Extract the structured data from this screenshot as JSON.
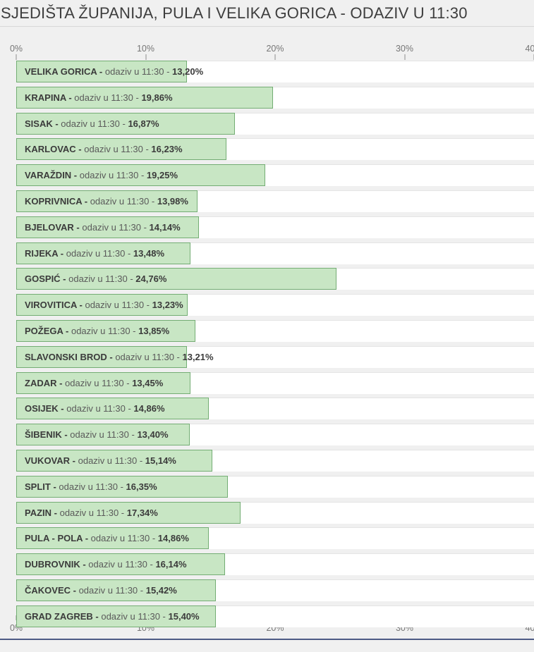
{
  "header": {
    "title": "SJEDIŠTA ŽUPANIJA, PULA I VELIKA GORICA - ODAZIV U 11:30"
  },
  "colors": {
    "bar_fill": "#c8e6c4",
    "bar_border": "#74ad74",
    "footer_line": "#4d5b85",
    "page_background": "#f0f0f0"
  },
  "chart_data": {
    "type": "bar",
    "orientation": "horizontal",
    "title": "SJEDIŠTA ŽUPANIJA, PULA I VELIKA GORICA - ODAZIV U 11:30",
    "xlim": [
      0,
      40
    ],
    "grid": false,
    "x_ticks": [
      {
        "pos": 0,
        "label": "0%"
      },
      {
        "pos": 10,
        "label": "10%"
      },
      {
        "pos": 20,
        "label": "20%"
      },
      {
        "pos": 30,
        "label": "30%"
      },
      {
        "pos": 40,
        "label": "40%"
      }
    ],
    "row_text": {
      "separator": "-",
      "label": "odaziv u 11:30"
    },
    "rows": [
      {
        "name": "VELIKA GORICA",
        "value": 13.2,
        "value_label": "13,20%"
      },
      {
        "name": "KRAPINA",
        "value": 19.86,
        "value_label": "19,86%"
      },
      {
        "name": "SISAK",
        "value": 16.87,
        "value_label": "16,87%"
      },
      {
        "name": "KARLOVAC",
        "value": 16.23,
        "value_label": "16,23%"
      },
      {
        "name": "VARAŽDIN",
        "value": 19.25,
        "value_label": "19,25%"
      },
      {
        "name": "KOPRIVNICA",
        "value": 13.98,
        "value_label": "13,98%"
      },
      {
        "name": "BJELOVAR",
        "value": 14.14,
        "value_label": "14,14%"
      },
      {
        "name": "RIJEKA",
        "value": 13.48,
        "value_label": "13,48%"
      },
      {
        "name": "GOSPIĆ",
        "value": 24.76,
        "value_label": "24,76%"
      },
      {
        "name": "VIROVITICA",
        "value": 13.23,
        "value_label": "13,23%"
      },
      {
        "name": "POŽEGA",
        "value": 13.85,
        "value_label": "13,85%"
      },
      {
        "name": "SLAVONSKI BROD",
        "value": 13.21,
        "value_label": "13,21%"
      },
      {
        "name": "ZADAR",
        "value": 13.45,
        "value_label": "13,45%"
      },
      {
        "name": "OSIJEK",
        "value": 14.86,
        "value_label": "14,86%"
      },
      {
        "name": "ŠIBENIK",
        "value": 13.4,
        "value_label": "13,40%"
      },
      {
        "name": "VUKOVAR",
        "value": 15.14,
        "value_label": "15,14%"
      },
      {
        "name": "SPLIT",
        "value": 16.35,
        "value_label": "16,35%"
      },
      {
        "name": "PAZIN",
        "value": 17.34,
        "value_label": "17,34%"
      },
      {
        "name": "PULA - POLA",
        "value": 14.86,
        "value_label": "14,86%"
      },
      {
        "name": "DUBROVNIK",
        "value": 16.14,
        "value_label": "16,14%"
      },
      {
        "name": "ČAKOVEC",
        "value": 15.42,
        "value_label": "15,42%"
      },
      {
        "name": "GRAD ZAGREB",
        "value": 15.4,
        "value_label": "15,40%"
      }
    ]
  }
}
